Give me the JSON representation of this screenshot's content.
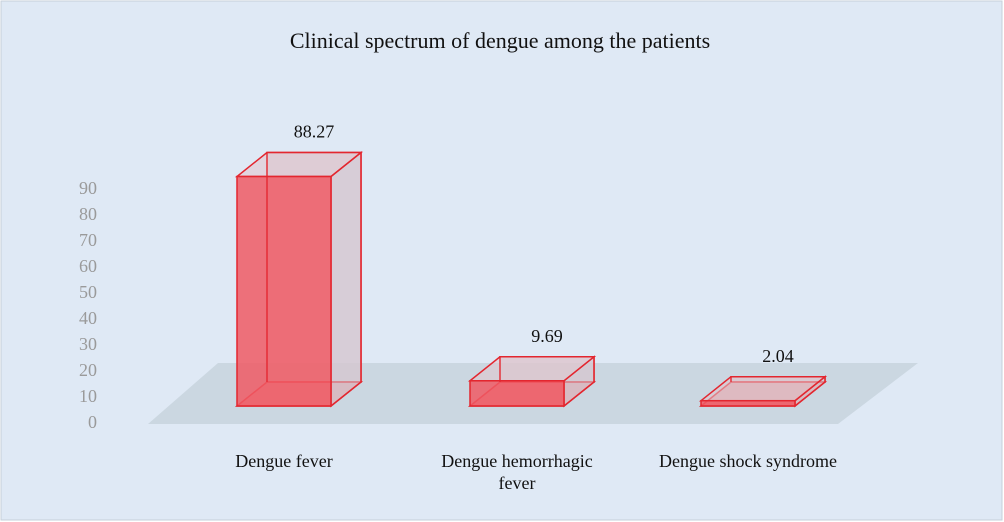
{
  "chart_data": {
    "type": "bar3d",
    "title": "Clinical spectrum of dengue among the patients",
    "categories": [
      "Dengue fever",
      "Dengue hemorrhagic fever",
      "Dengue shock syndrome"
    ],
    "values": [
      88.27,
      9.69,
      2.04
    ],
    "color": "#f05a64",
    "ylim": [
      0,
      90
    ],
    "yticks": [
      0,
      10,
      20,
      30,
      40,
      50,
      60,
      70,
      80,
      90
    ],
    "grid": false
  }
}
